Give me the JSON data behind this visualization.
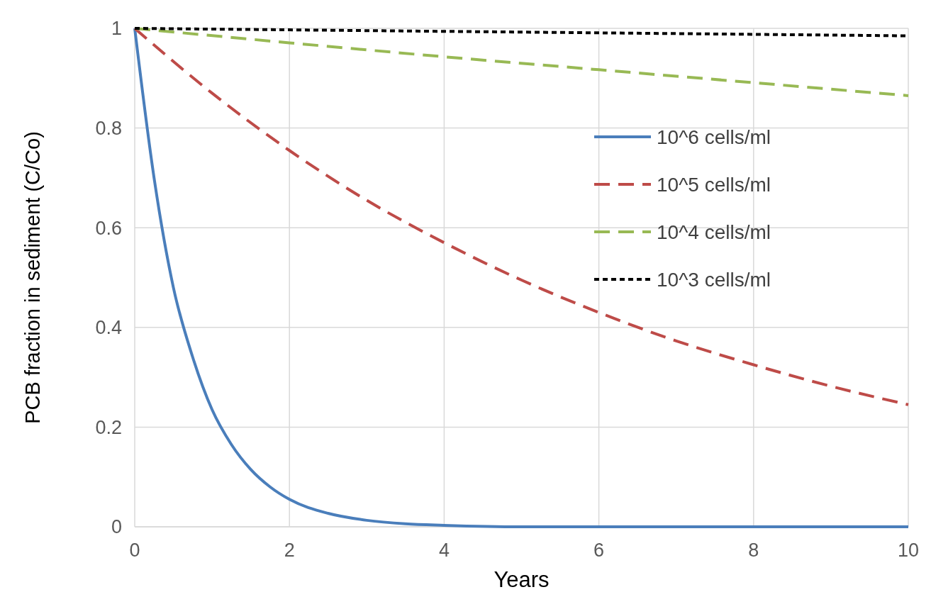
{
  "chart_data": {
    "type": "line",
    "xlabel": "Years",
    "ylabel": "PCB fraction in sediment (C/Co)",
    "xlim": [
      0,
      10
    ],
    "ylim": [
      0,
      1
    ],
    "xticks": [
      0,
      2,
      4,
      6,
      8,
      10
    ],
    "yticks": [
      0,
      0.2,
      0.4,
      0.6,
      0.8,
      1
    ],
    "grid": true,
    "legend": "right",
    "series": [
      {
        "name": "10^6 cells/ml",
        "color": "#4a7ebb",
        "line_style": "solid",
        "x": [
          0,
          0.25,
          0.5,
          0.75,
          1,
          1.25,
          1.5,
          1.75,
          2,
          2.5,
          3,
          3.5,
          4,
          5,
          6,
          8,
          10
        ],
        "values": [
          1,
          0.7,
          0.48,
          0.34,
          0.235,
          0.165,
          0.115,
          0.08,
          0.055,
          0.027,
          0.013,
          0.006,
          0.003,
          0,
          0,
          0,
          0
        ]
      },
      {
        "name": "10^5 cells/ml",
        "color": "#be4b48",
        "line_style": "dashed",
        "x": [
          0,
          1,
          2,
          3,
          4,
          5,
          6,
          7,
          8,
          9,
          10
        ],
        "values": [
          1,
          0.87,
          0.755,
          0.655,
          0.57,
          0.495,
          0.43,
          0.373,
          0.325,
          0.282,
          0.245
        ]
      },
      {
        "name": "10^4 cells/ml",
        "color": "#98b954",
        "line_style": "dashed",
        "x": [
          0,
          2,
          4,
          6,
          8,
          10
        ],
        "values": [
          1,
          0.971,
          0.943,
          0.917,
          0.891,
          0.865
        ]
      },
      {
        "name": "10^3 cells/ml",
        "color": "#000000",
        "line_style": "dotted",
        "x": [
          0,
          2,
          4,
          6,
          8,
          10
        ],
        "values": [
          1,
          0.997,
          0.994,
          0.991,
          0.988,
          0.985
        ]
      }
    ]
  }
}
